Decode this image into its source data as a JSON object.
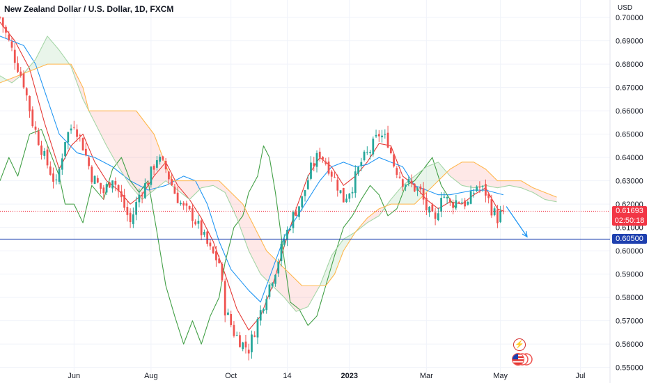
{
  "header": {
    "title": "New Zealand Dollar / U.S. Dollar, 1D, FXCM",
    "currency": "USD"
  },
  "colors": {
    "grid": "#f0f3fa",
    "up": "#26a69a",
    "down": "#ef5350",
    "conversion": "#e53935",
    "base": "#2196f3",
    "lagging": "#43a047",
    "span_a": "#a5d6a7",
    "span_b": "#ffb74d",
    "cloud_bull": "rgba(76,175,80,0.12)",
    "cloud_bear": "rgba(244,67,54,0.12)",
    "level_line": "#1e40af",
    "price_tag_red": "#f23645",
    "price_tag_blue": "#1e40af",
    "arrow": "#2196f3"
  },
  "price_tags": {
    "last_price": "0.61693",
    "countdown": "02:50:18",
    "level": "0.60500"
  },
  "icons": {
    "bolt": "lightning-icon",
    "flag": "us-flag-icon"
  },
  "chart_data": {
    "type": "candlestick",
    "ylim": [
      0.5475,
      0.7075
    ],
    "xlim": [
      0,
      206
    ],
    "x_ticks": [
      {
        "label": "Jun",
        "x": 25
      },
      {
        "label": "Aug",
        "x": 51
      },
      {
        "label": "Oct",
        "x": 78
      },
      {
        "label": "14",
        "x": 97
      },
      {
        "label": "2023",
        "x": 118
      },
      {
        "label": "Mar",
        "x": 144
      },
      {
        "label": "May",
        "x": 169
      },
      {
        "label": "Jul",
        "x": 196
      }
    ],
    "y_ticks": [
      0.55,
      0.56,
      0.57,
      0.58,
      0.59,
      0.6,
      0.61,
      0.62,
      0.63,
      0.64,
      0.65,
      0.66,
      0.67,
      0.68,
      0.69,
      0.7
    ],
    "y_tick_labels": [
      "0.55000",
      "0.56000",
      "0.57000",
      "0.58000",
      "0.59000",
      "0.60000",
      "0.61000",
      "0.62000",
      "0.63000",
      "0.64000",
      "0.65000",
      "0.66000",
      "0.67000",
      "0.68000",
      "0.69000",
      "0.70000"
    ],
    "last_price": 0.61693,
    "horizontal_level": 0.605,
    "close_path": [
      [
        0,
        0.7
      ],
      [
        4,
        0.686
      ],
      [
        8,
        0.672
      ],
      [
        11,
        0.655
      ],
      [
        15,
        0.64
      ],
      [
        19,
        0.628
      ],
      [
        22,
        0.648
      ],
      [
        25,
        0.655
      ],
      [
        28,
        0.645
      ],
      [
        31,
        0.632
      ],
      [
        35,
        0.625
      ],
      [
        38,
        0.632
      ],
      [
        41,
        0.622
      ],
      [
        44,
        0.612
      ],
      [
        47,
        0.624
      ],
      [
        50,
        0.63
      ],
      [
        53,
        0.64
      ],
      [
        56,
        0.635
      ],
      [
        59,
        0.625
      ],
      [
        62,
        0.618
      ],
      [
        65,
        0.615
      ],
      [
        68,
        0.608
      ],
      [
        71,
        0.6
      ],
      [
        74,
        0.595
      ],
      [
        76,
        0.575
      ],
      [
        79,
        0.565
      ],
      [
        82,
        0.56
      ],
      [
        84,
        0.558
      ],
      [
        87,
        0.57
      ],
      [
        90,
        0.582
      ],
      [
        93,
        0.592
      ],
      [
        96,
        0.605
      ],
      [
        99,
        0.615
      ],
      [
        102,
        0.622
      ],
      [
        105,
        0.635
      ],
      [
        108,
        0.642
      ],
      [
        111,
        0.636
      ],
      [
        114,
        0.628
      ],
      [
        116,
        0.622
      ],
      [
        119,
        0.628
      ],
      [
        122,
        0.638
      ],
      [
        125,
        0.643
      ],
      [
        128,
        0.65
      ],
      [
        131,
        0.647
      ],
      [
        133,
        0.637
      ],
      [
        136,
        0.63
      ],
      [
        139,
        0.628
      ],
      [
        142,
        0.625
      ],
      [
        144,
        0.618
      ],
      [
        147,
        0.612
      ],
      [
        149,
        0.625
      ],
      [
        152,
        0.62
      ],
      [
        155,
        0.622
      ],
      [
        158,
        0.62
      ],
      [
        161,
        0.628
      ],
      [
        164,
        0.625
      ],
      [
        166,
        0.618
      ],
      [
        168,
        0.614
      ],
      [
        170,
        0.617
      ]
    ],
    "series": [
      {
        "key": "conversion",
        "points": [
          [
            0,
            0.698
          ],
          [
            5,
            0.69
          ],
          [
            10,
            0.678
          ],
          [
            15,
            0.655
          ],
          [
            20,
            0.635
          ],
          [
            24,
            0.645
          ],
          [
            28,
            0.65
          ],
          [
            32,
            0.638
          ],
          [
            36,
            0.63
          ],
          [
            40,
            0.626
          ],
          [
            44,
            0.62
          ],
          [
            48,
            0.624
          ],
          [
            52,
            0.632
          ],
          [
            56,
            0.638
          ],
          [
            60,
            0.628
          ],
          [
            64,
            0.622
          ],
          [
            68,
            0.614
          ],
          [
            72,
            0.604
          ],
          [
            76,
            0.59
          ],
          [
            80,
            0.575
          ],
          [
            84,
            0.566
          ],
          [
            88,
            0.572
          ],
          [
            92,
            0.585
          ],
          [
            96,
            0.602
          ],
          [
            100,
            0.618
          ],
          [
            104,
            0.632
          ],
          [
            108,
            0.64
          ],
          [
            112,
            0.636
          ],
          [
            116,
            0.628
          ],
          [
            120,
            0.632
          ],
          [
            124,
            0.638
          ],
          [
            128,
            0.646
          ],
          [
            132,
            0.645
          ],
          [
            136,
            0.632
          ],
          [
            140,
            0.628
          ],
          [
            144,
            0.622
          ],
          [
            148,
            0.618
          ],
          [
            152,
            0.621
          ],
          [
            156,
            0.62
          ],
          [
            160,
            0.624
          ],
          [
            164,
            0.627
          ],
          [
            168,
            0.618
          ],
          [
            170,
            0.617
          ]
        ]
      },
      {
        "key": "base",
        "points": [
          [
            0,
            0.692
          ],
          [
            8,
            0.688
          ],
          [
            12,
            0.68
          ],
          [
            16,
            0.665
          ],
          [
            20,
            0.65
          ],
          [
            26,
            0.642
          ],
          [
            32,
            0.64
          ],
          [
            38,
            0.636
          ],
          [
            44,
            0.63
          ],
          [
            50,
            0.626
          ],
          [
            56,
            0.628
          ],
          [
            62,
            0.632
          ],
          [
            66,
            0.63
          ],
          [
            70,
            0.62
          ],
          [
            74,
            0.604
          ],
          [
            78,
            0.592
          ],
          [
            84,
            0.583
          ],
          [
            88,
            0.578
          ],
          [
            92,
            0.592
          ],
          [
            96,
            0.606
          ],
          [
            100,
            0.614
          ],
          [
            104,
            0.622
          ],
          [
            108,
            0.63
          ],
          [
            112,
            0.636
          ],
          [
            116,
            0.638
          ],
          [
            120,
            0.636
          ],
          [
            124,
            0.637
          ],
          [
            128,
            0.64
          ],
          [
            132,
            0.638
          ],
          [
            136,
            0.636
          ],
          [
            140,
            0.628
          ],
          [
            144,
            0.626
          ],
          [
            148,
            0.624
          ],
          [
            152,
            0.624
          ],
          [
            156,
            0.625
          ],
          [
            160,
            0.626
          ],
          [
            164,
            0.626
          ],
          [
            170,
            0.624
          ]
        ]
      },
      {
        "key": "lagging",
        "points": [
          [
            0,
            0.63
          ],
          [
            3,
            0.64
          ],
          [
            6,
            0.632
          ],
          [
            10,
            0.65
          ],
          [
            14,
            0.652
          ],
          [
            17,
            0.642
          ],
          [
            20,
            0.632
          ],
          [
            22,
            0.62
          ],
          [
            25,
            0.62
          ],
          [
            28,
            0.612
          ],
          [
            31,
            0.628
          ],
          [
            35,
            0.622
          ],
          [
            38,
            0.635
          ],
          [
            41,
            0.64
          ],
          [
            44,
            0.63
          ],
          [
            47,
            0.625
          ],
          [
            50,
            0.63
          ],
          [
            53,
            0.608
          ],
          [
            56,
            0.585
          ],
          [
            59,
            0.572
          ],
          [
            62,
            0.56
          ],
          [
            65,
            0.57
          ],
          [
            68,
            0.56
          ],
          [
            71,
            0.572
          ],
          [
            74,
            0.58
          ],
          [
            76,
            0.595
          ],
          [
            79,
            0.61
          ],
          [
            82,
            0.615
          ],
          [
            84,
            0.625
          ],
          [
            87,
            0.632
          ],
          [
            89,
            0.645
          ],
          [
            91,
            0.64
          ],
          [
            93,
            0.625
          ],
          [
            95,
            0.606
          ],
          [
            96,
            0.596
          ],
          [
            98,
            0.578
          ],
          [
            101,
            0.575
          ],
          [
            104,
            0.568
          ],
          [
            107,
            0.572
          ],
          [
            110,
            0.585
          ],
          [
            113,
            0.598
          ],
          [
            116,
            0.61
          ],
          [
            119,
            0.615
          ],
          [
            122,
            0.622
          ],
          [
            125,
            0.628
          ],
          [
            128,
            0.624
          ],
          [
            131,
            0.615
          ],
          [
            134,
            0.618
          ],
          [
            137,
            0.628
          ],
          [
            140,
            0.63
          ],
          [
            143,
            0.635
          ],
          [
            146,
            0.64
          ],
          [
            149,
            0.628
          ],
          [
            152,
            0.622
          ],
          [
            154,
            0.618
          ]
        ]
      },
      {
        "key": "span_a",
        "points": [
          [
            0,
            0.675
          ],
          [
            4,
            0.672
          ],
          [
            8,
            0.676
          ],
          [
            12,
            0.682
          ],
          [
            16,
            0.692
          ],
          [
            20,
            0.686
          ],
          [
            24,
            0.679
          ],
          [
            28,
            0.665
          ],
          [
            32,
            0.655
          ],
          [
            36,
            0.645
          ],
          [
            40,
            0.636
          ],
          [
            44,
            0.628
          ],
          [
            48,
            0.622
          ],
          [
            52,
            0.626
          ],
          [
            56,
            0.63
          ],
          [
            60,
            0.626
          ],
          [
            64,
            0.622
          ],
          [
            68,
            0.627
          ],
          [
            72,
            0.628
          ],
          [
            76,
            0.625
          ],
          [
            80,
            0.614
          ],
          [
            84,
            0.6
          ],
          [
            88,
            0.59
          ],
          [
            92,
            0.585
          ],
          [
            96,
            0.58
          ],
          [
            100,
            0.574
          ],
          [
            104,
            0.576
          ],
          [
            108,
            0.585
          ],
          [
            112,
            0.598
          ],
          [
            116,
            0.605
          ],
          [
            120,
            0.608
          ],
          [
            124,
            0.612
          ],
          [
            128,
            0.615
          ],
          [
            132,
            0.622
          ],
          [
            136,
            0.628
          ],
          [
            140,
            0.632
          ],
          [
            144,
            0.636
          ],
          [
            148,
            0.638
          ],
          [
            152,
            0.632
          ],
          [
            156,
            0.628
          ],
          [
            160,
            0.627
          ],
          [
            164,
            0.628
          ],
          [
            168,
            0.627
          ],
          [
            172,
            0.628
          ],
          [
            176,
            0.627
          ],
          [
            180,
            0.625
          ],
          [
            184,
            0.622
          ],
          [
            188,
            0.621
          ]
        ]
      },
      {
        "key": "span_b",
        "points": [
          [
            0,
            0.672
          ],
          [
            4,
            0.674
          ],
          [
            8,
            0.676
          ],
          [
            12,
            0.678
          ],
          [
            16,
            0.68
          ],
          [
            20,
            0.68
          ],
          [
            24,
            0.68
          ],
          [
            28,
            0.67
          ],
          [
            30,
            0.66
          ],
          [
            34,
            0.66
          ],
          [
            38,
            0.66
          ],
          [
            42,
            0.66
          ],
          [
            46,
            0.66
          ],
          [
            49,
            0.655
          ],
          [
            52,
            0.65
          ],
          [
            55,
            0.64
          ],
          [
            58,
            0.63
          ],
          [
            62,
            0.63
          ],
          [
            66,
            0.63
          ],
          [
            70,
            0.63
          ],
          [
            74,
            0.63
          ],
          [
            78,
            0.625
          ],
          [
            82,
            0.62
          ],
          [
            86,
            0.61
          ],
          [
            90,
            0.6
          ],
          [
            94,
            0.595
          ],
          [
            98,
            0.59
          ],
          [
            102,
            0.585
          ],
          [
            106,
            0.585
          ],
          [
            110,
            0.585
          ],
          [
            113,
            0.59
          ],
          [
            116,
            0.6
          ],
          [
            120,
            0.608
          ],
          [
            124,
            0.614
          ],
          [
            128,
            0.618
          ],
          [
            132,
            0.62
          ],
          [
            136,
            0.62
          ],
          [
            140,
            0.62
          ],
          [
            144,
            0.625
          ],
          [
            148,
            0.63
          ],
          [
            152,
            0.635
          ],
          [
            156,
            0.638
          ],
          [
            160,
            0.638
          ],
          [
            164,
            0.635
          ],
          [
            168,
            0.63
          ],
          [
            172,
            0.63
          ],
          [
            176,
            0.63
          ],
          [
            180,
            0.627
          ],
          [
            184,
            0.625
          ],
          [
            188,
            0.623
          ]
        ]
      }
    ],
    "projection_arrow": {
      "from": [
        171,
        0.619
      ],
      "to": [
        178,
        0.606
      ]
    }
  }
}
